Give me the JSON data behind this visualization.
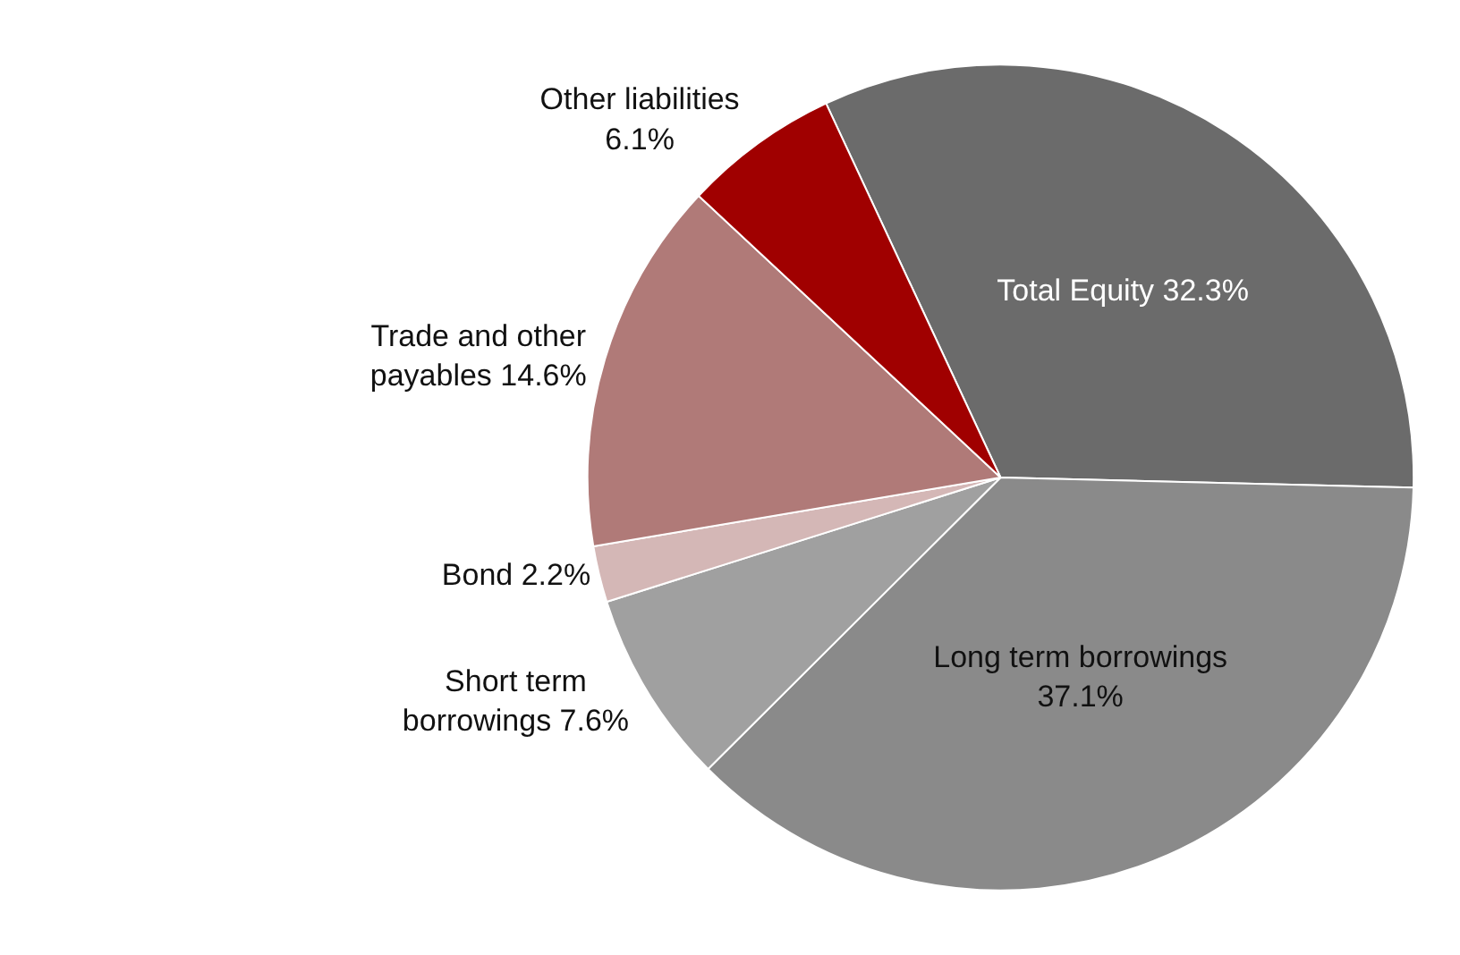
{
  "chart_data": {
    "type": "pie",
    "categories": [
      "Total Equity",
      "Long term borrowings",
      "Short term borrowings",
      "Bond",
      "Trade and other payables",
      "Other liabilities"
    ],
    "values": [
      32.3,
      37.1,
      7.6,
      2.2,
      14.6,
      6.1
    ],
    "value_labels": [
      "32.3%",
      "37.1%",
      "7.6%",
      "2.2%",
      "14.6%",
      "6.1%"
    ],
    "colors": [
      "#6b6b6b",
      "#8a8a8a",
      "#a0a0a0",
      "#d4b7b6",
      "#b07a78",
      "#a00000"
    ],
    "legend": false
  }
}
